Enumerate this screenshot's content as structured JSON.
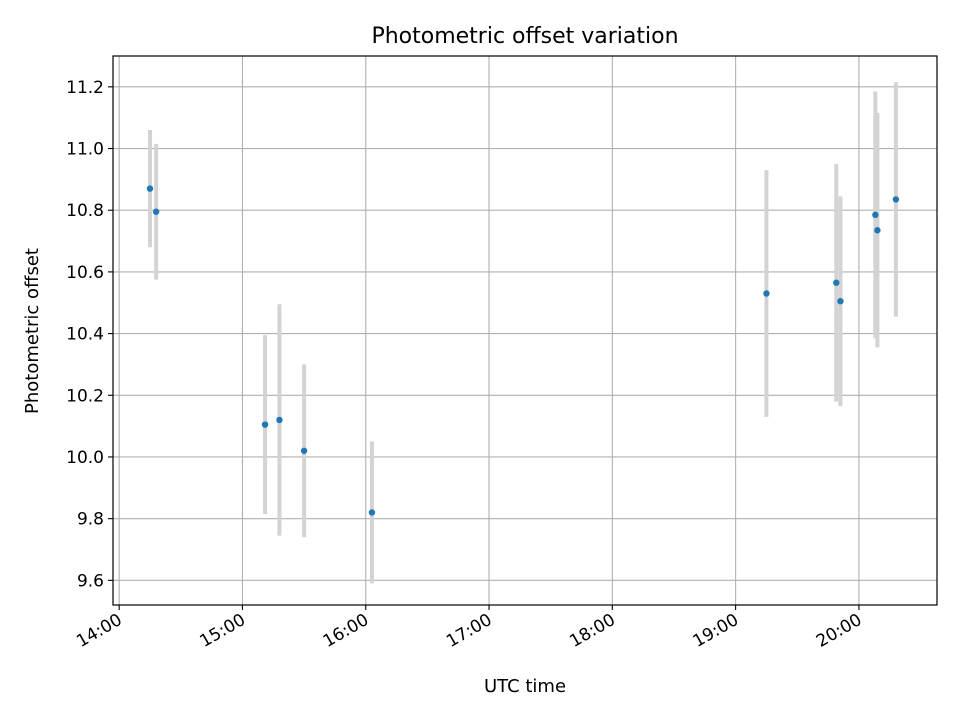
{
  "chart_data": {
    "type": "scatter",
    "title": "Photometric offset variation",
    "xlabel": "UTC time",
    "ylabel": "Photometric offset",
    "x_tick_labels": [
      "14:00",
      "15:00",
      "16:00",
      "17:00",
      "18:00",
      "19:00",
      "20:00"
    ],
    "y_tick_labels": [
      "9.6",
      "9.8",
      "10.0",
      "10.2",
      "10.4",
      "10.6",
      "10.8",
      "11.0",
      "11.2"
    ],
    "x_ticks": [
      "14:00",
      "15:00",
      "16:00",
      "17:00",
      "18:00",
      "19:00",
      "20:00"
    ],
    "y_ticks": [
      9.6,
      9.8,
      10.0,
      10.2,
      10.4,
      10.6,
      10.8,
      11.0,
      11.2
    ],
    "xlim": [
      "13:57",
      "20:38"
    ],
    "ylim": [
      9.52,
      11.3
    ],
    "grid": true,
    "points": [
      {
        "x": "14:15",
        "y": 10.87,
        "err": 0.19
      },
      {
        "x": "14:18",
        "y": 10.795,
        "err": 0.22
      },
      {
        "x": "15:11",
        "y": 10.105,
        "err": 0.29
      },
      {
        "x": "15:18",
        "y": 10.12,
        "err": 0.375
      },
      {
        "x": "15:30",
        "y": 10.02,
        "err": 0.28
      },
      {
        "x": "16:03",
        "y": 9.82,
        "err": 0.23
      },
      {
        "x": "19:15",
        "y": 10.53,
        "err": 0.4
      },
      {
        "x": "19:49",
        "y": 10.565,
        "err": 0.385
      },
      {
        "x": "19:51",
        "y": 10.505,
        "err": 0.34
      },
      {
        "x": "20:08",
        "y": 10.785,
        "err": 0.4
      },
      {
        "x": "20:09",
        "y": 10.735,
        "err": 0.38
      },
      {
        "x": "20:18",
        "y": 10.835,
        "err": 0.38
      }
    ],
    "colors": {
      "point": "#1f77b4",
      "errorbar": "#d3d3d3",
      "grid": "#b0b0b0",
      "axes": "#000000"
    }
  }
}
